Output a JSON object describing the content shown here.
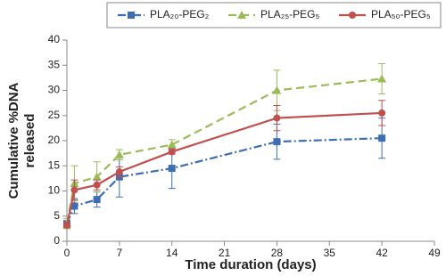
{
  "chart_data": {
    "type": "line",
    "xlabel": "Time duration (days)",
    "ylabel": [
      "Cumulative %DNA",
      "released"
    ],
    "x": [
      0,
      1,
      4,
      7,
      14,
      28,
      42
    ],
    "series": [
      {
        "name": "PLA₂₀-PEG₂",
        "color": "#3d6eb4",
        "dash": "dashdot",
        "marker": "square",
        "values": [
          3.5,
          7,
          8.3,
          12.8,
          14.5,
          19.8,
          20.5
        ],
        "errors": [
          0.5,
          1.5,
          1.5,
          4,
          4,
          3.5,
          4
        ]
      },
      {
        "name": "PLA₂₅-PEG₅",
        "color": "#9bbb59",
        "dash": "dashed",
        "marker": "triangle",
        "values": [
          3.5,
          11.5,
          12.8,
          17.2,
          19.2,
          30,
          32.3
        ],
        "errors": [
          1,
          3.5,
          3,
          1,
          1,
          4,
          3
        ]
      },
      {
        "name": "PLA₅₀-PEG₅",
        "color": "#c0504d",
        "dash": "solid",
        "marker": "circle",
        "values": [
          3.2,
          10.2,
          11.2,
          13.8,
          17.8,
          24.5,
          25.5
        ],
        "errors": [
          0.5,
          2,
          1,
          1,
          0.5,
          2.5,
          2.5
        ]
      }
    ],
    "xlim": [
      0,
      49
    ],
    "xticks": [
      0,
      7,
      14,
      21,
      28,
      35,
      42,
      49
    ],
    "ylim": [
      0,
      40
    ],
    "yticks": [
      0,
      5,
      10,
      15,
      20,
      25,
      30,
      35,
      40
    ],
    "legend": "top"
  }
}
